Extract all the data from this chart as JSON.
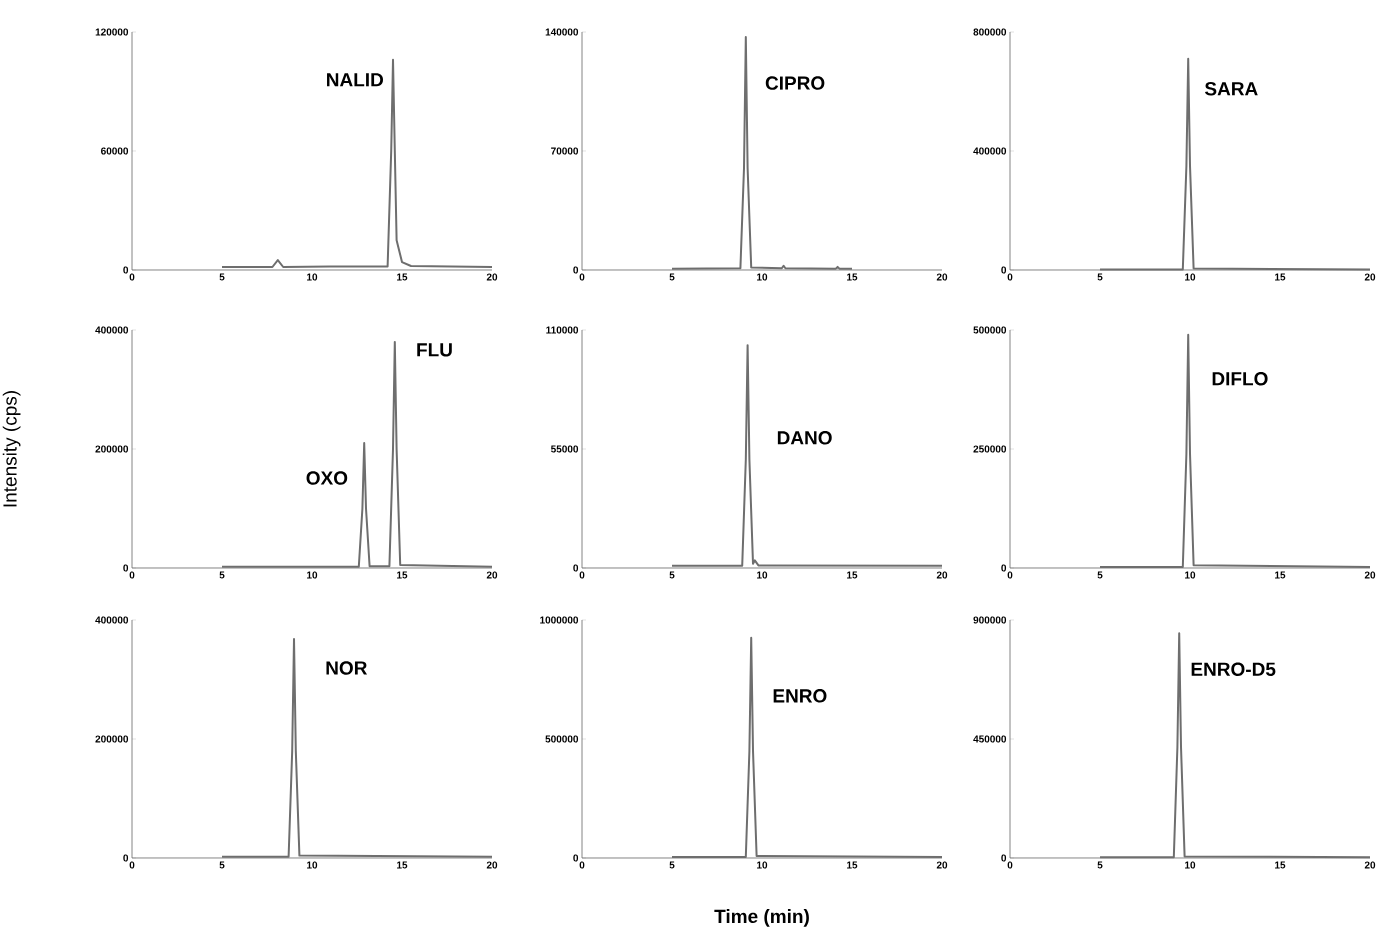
{
  "chart_data": [
    {
      "type": "line",
      "color": "#6e6e6e",
      "x": [
        5,
        7.8,
        8.1,
        8.4,
        11,
        14.2,
        14.4,
        14.5,
        14.6,
        14.7,
        15.0,
        15.5,
        20
      ],
      "values": [
        1500,
        1500,
        5000,
        1500,
        1800,
        1800,
        60000,
        106000,
        60000,
        15000,
        4000,
        2000,
        1500
      ],
      "xlim": [
        0,
        20
      ],
      "xticks": [
        0,
        5,
        10,
        15,
        20
      ],
      "ylim": [
        0,
        120000
      ],
      "yticks": [
        0,
        60000,
        120000
      ],
      "annotations": [
        {
          "text": "NALID",
          "x": 14.5,
          "y": 106000
        }
      ]
    },
    {
      "type": "line",
      "color": "#6e6e6e",
      "x": [
        5,
        8.8,
        9.0,
        9.1,
        9.2,
        9.4,
        11.1,
        11.2,
        11.3,
        14.1,
        14.2,
        14.3,
        15
      ],
      "values": [
        800,
        1000,
        60000,
        137000,
        60000,
        1500,
        1000,
        2500,
        1000,
        800,
        1800,
        800,
        800
      ],
      "xlim": [
        0,
        20
      ],
      "xticks": [
        0,
        5,
        10,
        15,
        20
      ],
      "ylim": [
        0,
        140000
      ],
      "yticks": [
        0,
        70000,
        140000
      ],
      "annotations": [
        {
          "text": "CIPRO",
          "x": 9.1,
          "y": 137000
        }
      ]
    },
    {
      "type": "line",
      "color": "#6e6e6e",
      "x": [
        5,
        9.6,
        9.8,
        9.9,
        10.0,
        10.2,
        20
      ],
      "values": [
        2000,
        2000,
        350000,
        710000,
        350000,
        5000,
        2000
      ],
      "xlim": [
        0,
        20
      ],
      "xticks": [
        0,
        5,
        10,
        15,
        20
      ],
      "ylim": [
        0,
        800000
      ],
      "yticks": [
        0,
        400000,
        800000
      ],
      "annotations": [
        {
          "text": "SARA",
          "x": 9.9,
          "y": 710000
        }
      ]
    },
    {
      "type": "line",
      "color": "#6e6e6e",
      "x": [
        5,
        12.6,
        12.8,
        12.9,
        13.0,
        13.2,
        14.3,
        14.5,
        14.6,
        14.7,
        14.9,
        20
      ],
      "values": [
        2000,
        2000,
        100000,
        210000,
        100000,
        3000,
        3000,
        200000,
        380000,
        200000,
        5000,
        2000
      ],
      "xlim": [
        0,
        20
      ],
      "xticks": [
        0,
        5,
        10,
        15,
        20
      ],
      "ylim": [
        0,
        400000
      ],
      "yticks": [
        0,
        200000,
        400000
      ],
      "ylabel": "Intensity (cps)",
      "annotations": [
        {
          "text": "OXO",
          "x": 12.9,
          "y": 210000
        },
        {
          "text": "FLU",
          "x": 14.6,
          "y": 380000
        }
      ]
    },
    {
      "type": "line",
      "color": "#6e6e6e",
      "x": [
        5,
        8.9,
        9.1,
        9.2,
        9.3,
        9.5,
        9.6,
        9.8,
        20
      ],
      "values": [
        1000,
        1000,
        50000,
        103000,
        50000,
        2000,
        3500,
        1200,
        1000
      ],
      "xlim": [
        0,
        20
      ],
      "xticks": [
        0,
        5,
        10,
        15,
        20
      ],
      "ylim": [
        0,
        110000
      ],
      "yticks": [
        0,
        55000,
        110000
      ],
      "annotations": [
        {
          "text": "DANO",
          "x": 9.3,
          "y": 50000
        }
      ]
    },
    {
      "type": "line",
      "color": "#6e6e6e",
      "x": [
        5,
        9.6,
        9.8,
        9.9,
        10.0,
        10.2,
        20
      ],
      "values": [
        2000,
        2000,
        240000,
        490000,
        240000,
        6000,
        2000
      ],
      "xlim": [
        0,
        20
      ],
      "xticks": [
        0,
        5,
        10,
        15,
        20
      ],
      "ylim": [
        0,
        500000
      ],
      "yticks": [
        0,
        250000,
        500000
      ],
      "annotations": [
        {
          "text": "DIFLO",
          "x": 9.9,
          "y": 490000
        }
      ]
    },
    {
      "type": "line",
      "color": "#6e6e6e",
      "x": [
        5,
        8.7,
        8.9,
        9.0,
        9.1,
        9.3,
        20
      ],
      "values": [
        2000,
        2000,
        180000,
        368000,
        180000,
        4000,
        2000
      ],
      "xlim": [
        0,
        20
      ],
      "xticks": [
        0,
        5,
        10,
        15,
        20
      ],
      "ylim": [
        0,
        400000
      ],
      "yticks": [
        0,
        200000,
        400000
      ],
      "annotations": [
        {
          "text": "NOR",
          "x": 9.0,
          "y": 368000
        }
      ]
    },
    {
      "type": "line",
      "color": "#6e6e6e",
      "x": [
        5,
        9.1,
        9.3,
        9.4,
        9.5,
        9.7,
        20
      ],
      "values": [
        4000,
        4000,
        450000,
        925000,
        450000,
        8000,
        4000
      ],
      "xlim": [
        0,
        20
      ],
      "xticks": [
        0,
        5,
        10,
        15,
        20
      ],
      "ylim": [
        0,
        1000000
      ],
      "yticks": [
        0,
        500000,
        1000000
      ],
      "xlabel": "Time (min)",
      "annotations": [
        {
          "text": "ENRO",
          "x": 9.4,
          "y": 925000
        }
      ]
    },
    {
      "type": "line",
      "color": "#6e6e6e",
      "x": [
        5,
        9.1,
        9.3,
        9.4,
        9.5,
        9.7,
        20
      ],
      "values": [
        3000,
        3000,
        420000,
        850000,
        420000,
        6000,
        3000
      ],
      "xlim": [
        0,
        20
      ],
      "xticks": [
        0,
        5,
        10,
        15,
        20
      ],
      "ylim": [
        0,
        900000
      ],
      "yticks": [
        0,
        450000,
        900000
      ],
      "annotations": [
        {
          "text": "ENRO-D5",
          "x": 9.4,
          "y": 850000
        }
      ]
    }
  ]
}
